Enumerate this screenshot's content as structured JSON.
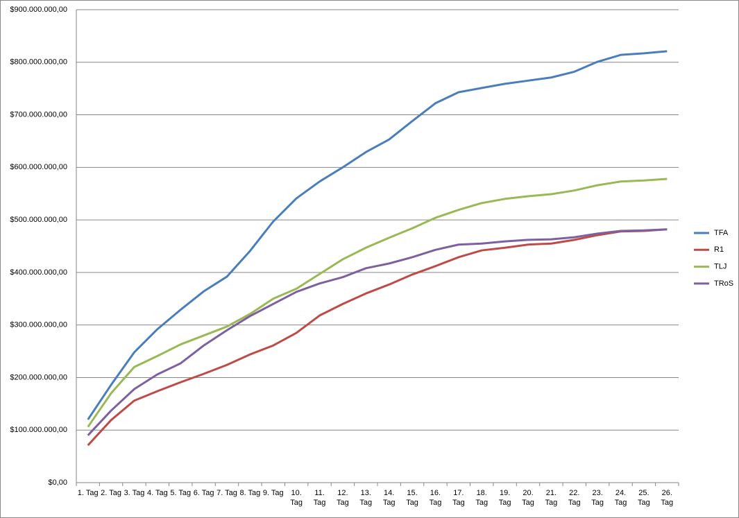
{
  "chart_data": {
    "type": "line",
    "categories": [
      "1. Tag",
      "2. Tag",
      "3. Tag",
      "4. Tag",
      "5. Tag",
      "6. Tag",
      "7. Tag",
      "8. Tag",
      "9. Tag",
      "10. Tag",
      "11. Tag",
      "12. Tag",
      "13. Tag",
      "14. Tag",
      "15. Tag",
      "16. Tag",
      "17. Tag",
      "18. Tag",
      "19. Tag",
      "20. Tag",
      "21. Tag",
      "22. Tag",
      "23. Tag",
      "24. Tag",
      "25. Tag",
      "26. Tag"
    ],
    "series": [
      {
        "name": "TFA",
        "color": "#4a7ebb",
        "values": [
          120000000,
          186000000,
          248000000,
          292000000,
          329000000,
          364000000,
          392000000,
          441000000,
          497000000,
          541000000,
          573000000,
          600000000,
          629000000,
          653000000,
          688000000,
          722000000,
          743000000,
          751000000,
          759000000,
          765000000,
          771000000,
          782000000,
          801000000,
          814000000,
          817000000,
          821000000
        ]
      },
      {
        "name": "R1",
        "color": "#be4b48",
        "values": [
          71000000,
          119000000,
          156000000,
          174000000,
          191000000,
          207000000,
          224000000,
          244000000,
          261000000,
          285000000,
          318000000,
          340000000,
          360000000,
          377000000,
          396000000,
          412000000,
          429000000,
          442000000,
          447000000,
          453000000,
          455000000,
          462000000,
          471000000,
          478000000,
          479000000,
          482000000
        ]
      },
      {
        "name": "TLJ",
        "color": "#98b954",
        "values": [
          106000000,
          170000000,
          220000000,
          241000000,
          263000000,
          280000000,
          297000000,
          321000000,
          350000000,
          369000000,
          397000000,
          425000000,
          447000000,
          466000000,
          484000000,
          504000000,
          519000000,
          532000000,
          540000000,
          545000000,
          549000000,
          556000000,
          566000000,
          573000000,
          575000000,
          578000000
        ]
      },
      {
        "name": "TRoS",
        "color": "#7d60a0",
        "values": [
          90000000,
          137000000,
          178000000,
          206000000,
          227000000,
          261000000,
          290000000,
          317000000,
          340000000,
          363000000,
          379000000,
          391000000,
          408000000,
          417000000,
          429000000,
          443000000,
          453000000,
          455000000,
          459000000,
          462000000,
          463000000,
          467000000,
          474000000,
          479000000,
          480000000,
          482000000
        ]
      }
    ],
    "ylim": [
      0,
      900000000
    ],
    "yticks": [
      {
        "value": 0,
        "label": "$0,00"
      },
      {
        "value": 100000000,
        "label": "$100.000.000,00"
      },
      {
        "value": 200000000,
        "label": "$200.000.000,00"
      },
      {
        "value": 300000000,
        "label": "$300.000.000,00"
      },
      {
        "value": 400000000,
        "label": "$400.000.000,00"
      },
      {
        "value": 500000000,
        "label": "$500.000.000,00"
      },
      {
        "value": 600000000,
        "label": "$600.000.000,00"
      },
      {
        "value": 700000000,
        "label": "$700.000.000,00"
      },
      {
        "value": 800000000,
        "label": "$800.000.000,00"
      },
      {
        "value": 900000000,
        "label": "$900.000.000,00"
      }
    ],
    "grid": true,
    "legend": "right"
  }
}
